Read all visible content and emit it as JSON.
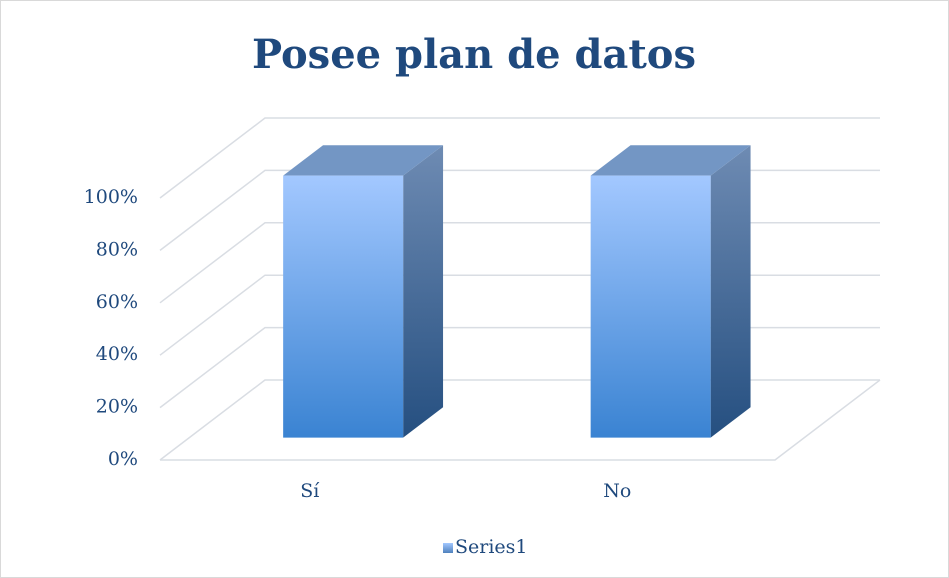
{
  "chart_data": {
    "type": "bar3d",
    "title": "Posee plan de datos",
    "categories": [
      "Sí",
      "No"
    ],
    "series": [
      {
        "name": "Series1",
        "color": "#4f81bd",
        "values": [
          100,
          100
        ]
      }
    ],
    "ylim": [
      0,
      100
    ],
    "yticks": [
      {
        "value": 0,
        "label": "0%"
      },
      {
        "value": 20,
        "label": "20%"
      },
      {
        "value": 40,
        "label": "40%"
      },
      {
        "value": 60,
        "label": "60%"
      },
      {
        "value": 80,
        "label": "80%"
      },
      {
        "value": 100,
        "label": "100%"
      }
    ],
    "grid": true,
    "legend": "bottom"
  }
}
